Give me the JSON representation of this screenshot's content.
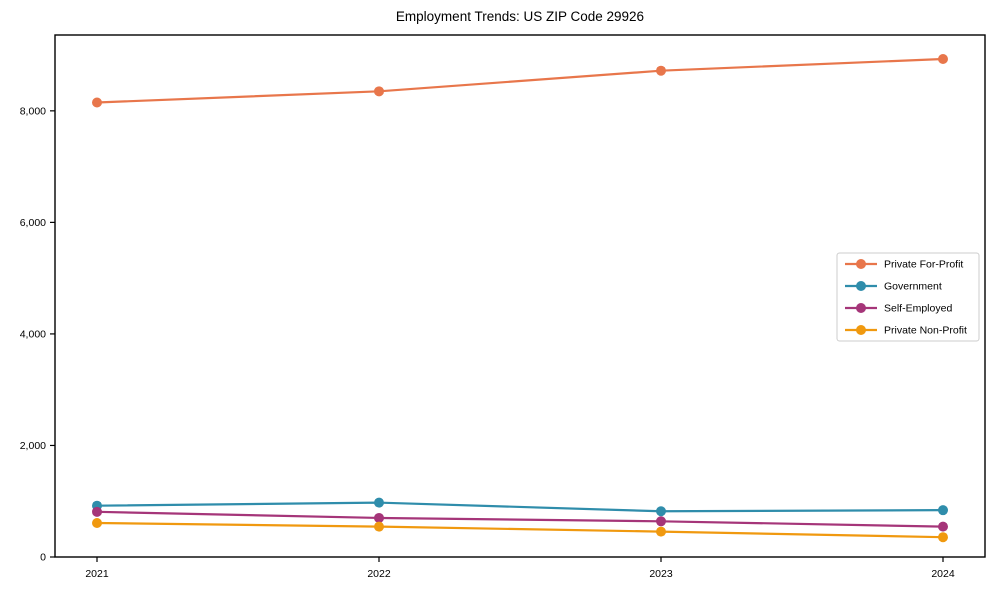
{
  "chart_data": {
    "type": "line",
    "title": "Employment Trends: US ZIP Code 29926",
    "categories": [
      "2021",
      "2022",
      "2023",
      "2024"
    ],
    "series": [
      {
        "name": "Private For-Profit",
        "color": "#e8764b",
        "values": [
          8150,
          8350,
          8720,
          8930
        ]
      },
      {
        "name": "Government",
        "color": "#2f8dab",
        "values": [
          920,
          975,
          820,
          840
        ]
      },
      {
        "name": "Self-Employed",
        "color": "#a53579",
        "values": [
          810,
          700,
          640,
          545
        ]
      },
      {
        "name": "Private Non-Profit",
        "color": "#f0990f",
        "values": [
          610,
          545,
          455,
          355
        ]
      }
    ],
    "xlabel": "",
    "ylabel": "",
    "ylim": [
      0,
      9360
    ],
    "ytick_values": [
      0,
      2000,
      4000,
      6000,
      8000
    ],
    "ytick_labels": [
      "0",
      "2,000",
      "4,000",
      "6,000",
      "8,000"
    ],
    "grid": false,
    "legend_position": "center-right",
    "axis_color": "#000000",
    "legend_border_color": "#cccccc",
    "background": "#ffffff"
  }
}
